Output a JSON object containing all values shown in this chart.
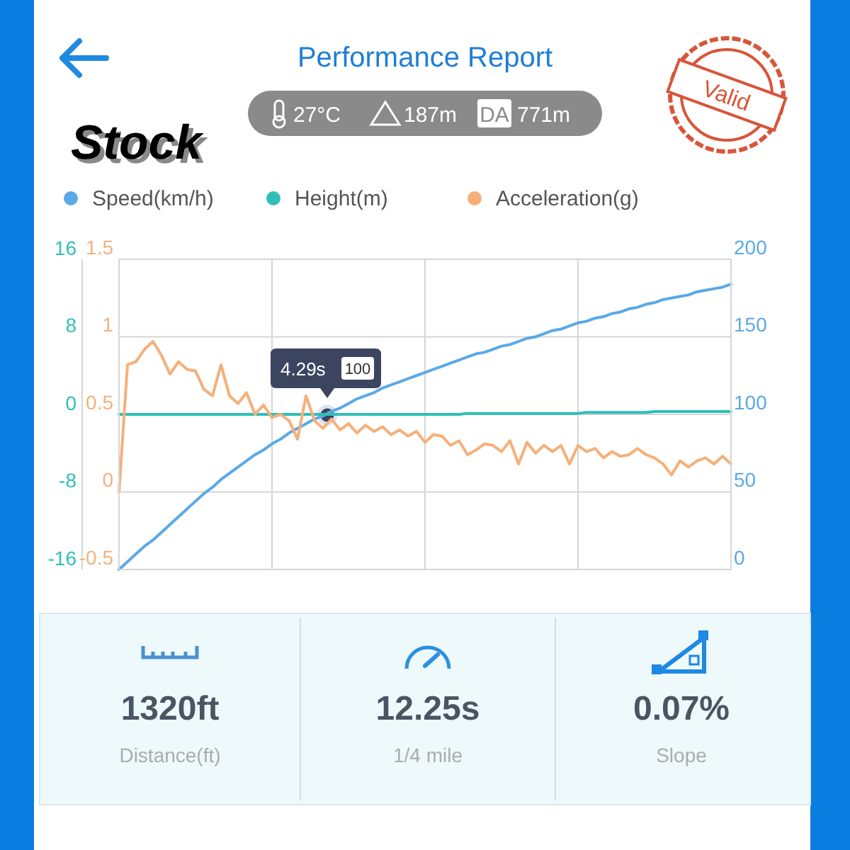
{
  "chart_data": {
    "type": "line",
    "title": "Performance Report",
    "categories": [
      null,
      null,
      null,
      null,
      null,
      null,
      null,
      null,
      null,
      null,
      null,
      null,
      null,
      null,
      null,
      null,
      null,
      null,
      null,
      null,
      null,
      null,
      null,
      null,
      null,
      null,
      null,
      null,
      null,
      null,
      null,
      null,
      null,
      null,
      null,
      null,
      null,
      null,
      null,
      null,
      null,
      null,
      null,
      null,
      null,
      null,
      null,
      null,
      null,
      null,
      null,
      null,
      null,
      null,
      null,
      null,
      null,
      null,
      null,
      null,
      null,
      null,
      null,
      null,
      null,
      null,
      null,
      null,
      null,
      null,
      null,
      null,
      null
    ],
    "series": [
      {
        "name": "Speed(km/h)",
        "color": "#5aa9e6",
        "axis": "y3",
        "values": [
          0,
          5,
          10,
          15,
          19,
          24,
          29,
          34,
          39,
          44,
          49,
          53,
          58,
          62,
          66,
          70,
          74,
          77,
          81,
          84,
          88,
          91,
          94,
          97,
          99,
          102,
          104,
          107,
          110,
          112,
          114,
          117,
          119,
          121,
          123,
          125,
          127,
          129,
          131,
          133,
          135,
          137,
          139,
          140,
          142,
          144,
          145,
          147,
          149,
          150,
          152,
          154,
          155,
          157,
          159,
          160,
          162,
          163,
          165,
          166,
          168,
          169,
          171,
          172,
          174,
          175,
          176,
          177,
          179,
          180,
          181,
          182,
          184
        ]
      },
      {
        "name": "Height(m)",
        "color": "#2ebfb8",
        "values": [
          0,
          0,
          0,
          0,
          0,
          0,
          0,
          0,
          0,
          0,
          0,
          0,
          0,
          0,
          0,
          0,
          0,
          0,
          0,
          0,
          0,
          0,
          0,
          0,
          0,
          0,
          0,
          0,
          0,
          0,
          0,
          0,
          0,
          0,
          0,
          0,
          0,
          0,
          0,
          0,
          0,
          0.1,
          0.1,
          0.1,
          0.1,
          0.1,
          0.1,
          0.1,
          0.1,
          0.1,
          0.1,
          0.1,
          0.1,
          0.1,
          0.1,
          0.2,
          0.2,
          0.2,
          0.2,
          0.2,
          0.2,
          0.2,
          0.2,
          0.3,
          0.3,
          0.3,
          0.3,
          0.3,
          0.3,
          0.3,
          0.3,
          0.3,
          0.3
        ]
      },
      {
        "name": "Acceleration(g)",
        "color": "#f5b07a",
        "axis": "y2",
        "values": [
          0,
          0.82,
          0.84,
          0.92,
          0.97,
          0.88,
          0.76,
          0.84,
          0.79,
          0.78,
          0.66,
          0.62,
          0.82,
          0.62,
          0.57,
          0.64,
          0.5,
          0.56,
          0.48,
          0.5,
          0.46,
          0.34,
          0.62,
          0.46,
          0.41,
          0.47,
          0.4,
          0.44,
          0.38,
          0.43,
          0.39,
          0.42,
          0.37,
          0.4,
          0.36,
          0.39,
          0.32,
          0.37,
          0.36,
          0.3,
          0.33,
          0.24,
          0.27,
          0.31,
          0.3,
          0.26,
          0.33,
          0.18,
          0.32,
          0.25,
          0.3,
          0.26,
          0.3,
          0.18,
          0.3,
          0.26,
          0.28,
          0.22,
          0.26,
          0.23,
          0.24,
          0.28,
          0.24,
          0.22,
          0.18,
          0.11,
          0.2,
          0.16,
          0.2,
          0.22,
          0.18,
          0.23,
          0.18
        ]
      }
    ],
    "ylim": [
      -16,
      16
    ],
    "yticks": [
      -16,
      -8,
      0,
      8,
      16
    ],
    "y2lim": [
      -0.5,
      1.5
    ],
    "y2ticks": [
      -0.5,
      0,
      0.5,
      1,
      1.5
    ],
    "y3lim": [
      0,
      200
    ],
    "y3ticks": [
      0,
      50,
      100,
      150,
      200
    ],
    "grid": true,
    "legend": "top",
    "marker": "none",
    "line_style": "solid",
    "annotations": [
      "Stock",
      "27°C",
      "187m",
      "DA",
      "771m",
      "Valid",
      "4.29s",
      "100",
      "1320ft",
      "Distance(ft)",
      "12.25s",
      "1/4 mile",
      "0.07%",
      "Slope"
    ]
  }
}
